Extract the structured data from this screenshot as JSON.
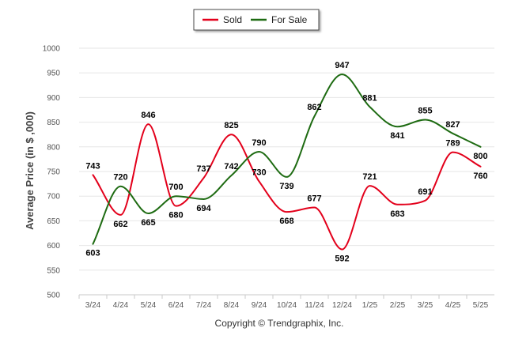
{
  "legend": {
    "items": [
      {
        "label": "Sold",
        "color": "#e3001b"
      },
      {
        "label": "For Sale",
        "color": "#1e6b12"
      }
    ]
  },
  "footer": {
    "copyright": "Copyright © Trendgraphix, Inc."
  },
  "chart_data": {
    "type": "line",
    "title": "",
    "xlabel": "",
    "ylabel": "Average Price (in $ ,000)",
    "ylim": [
      500,
      1000
    ],
    "yticks": [
      500,
      550,
      600,
      650,
      700,
      750,
      800,
      850,
      900,
      950,
      1000
    ],
    "grid": true,
    "legend_position": "top-center",
    "categories": [
      "3/24",
      "4/24",
      "5/24",
      "6/24",
      "7/24",
      "8/24",
      "9/24",
      "10/24",
      "11/24",
      "12/24",
      "1/25",
      "2/25",
      "3/25",
      "4/25",
      "5/25"
    ],
    "series": [
      {
        "name": "Sold",
        "color": "#e3001b",
        "values": [
          743,
          662,
          846,
          680,
          737,
          825,
          730,
          668,
          677,
          592,
          721,
          683,
          691,
          789,
          760
        ]
      },
      {
        "name": "For Sale",
        "color": "#1e6b12",
        "values": [
          603,
          720,
          665,
          700,
          694,
          742,
          790,
          739,
          862,
          947,
          881,
          841,
          855,
          827,
          800
        ]
      }
    ]
  }
}
